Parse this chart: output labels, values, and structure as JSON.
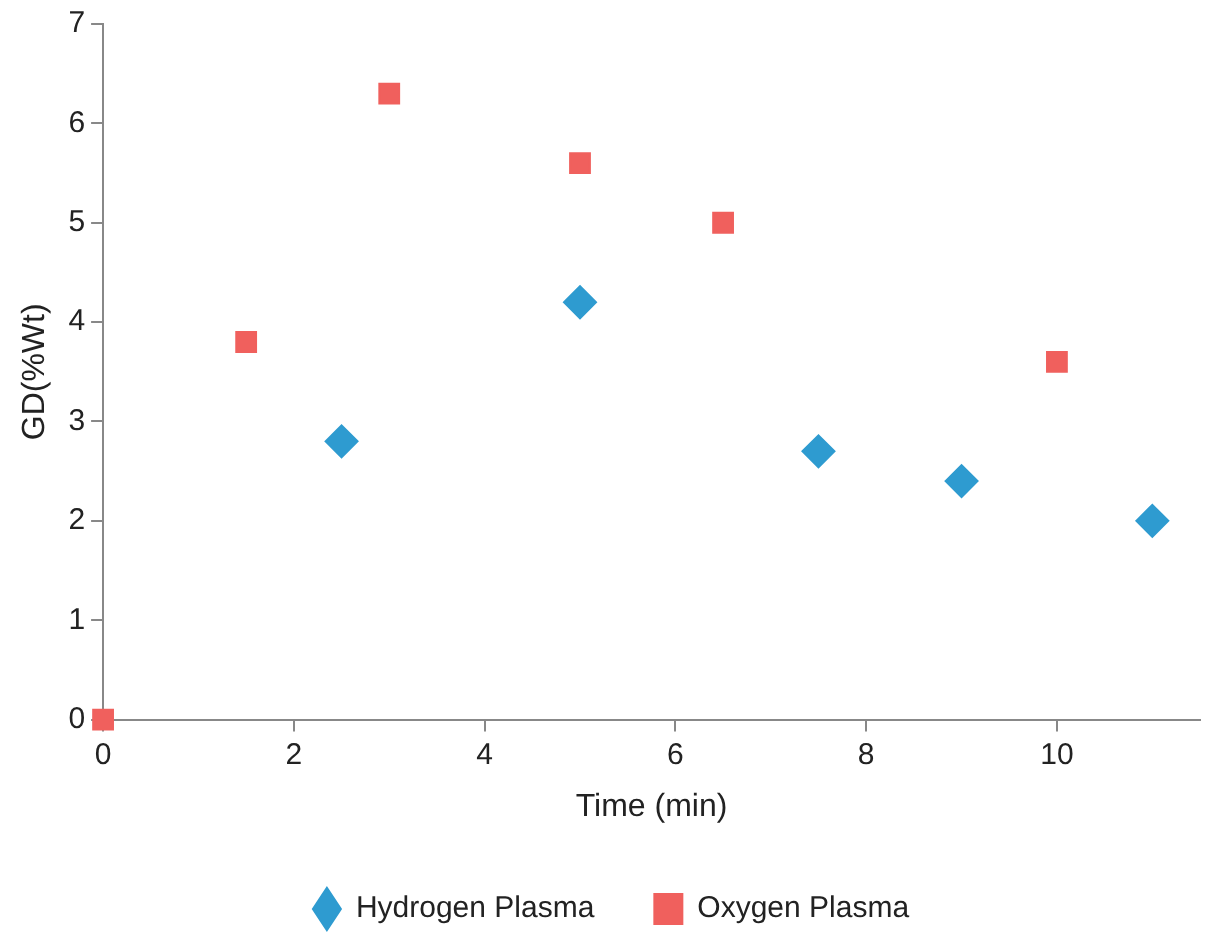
{
  "chart_data": {
    "type": "scatter",
    "xlabel": "Time (min)",
    "ylabel": "GD(%Wt)",
    "xlim": [
      0,
      11.5
    ],
    "xticks": [
      0,
      2,
      4,
      6,
      8,
      10
    ],
    "ylim": [
      0,
      7
    ],
    "yticks": [
      0,
      1,
      2,
      3,
      4,
      5,
      6,
      7
    ],
    "grid": false,
    "legend": "bottom",
    "series": [
      {
        "name": "Hydrogen Plasma",
        "color": "#2e9bd0",
        "marker": "diamond",
        "x": [
          2.5,
          5,
          7.5,
          9,
          11
        ],
        "values": [
          2.8,
          4.2,
          2.7,
          2.4,
          2.0
        ]
      },
      {
        "name": "Oxygen Plasma",
        "color": "#f0605d",
        "marker": "square",
        "x": [
          0,
          1.5,
          3,
          5,
          6.5,
          10
        ],
        "values": [
          0,
          3.8,
          6.3,
          5.6,
          5.0,
          3.6
        ]
      }
    ]
  }
}
